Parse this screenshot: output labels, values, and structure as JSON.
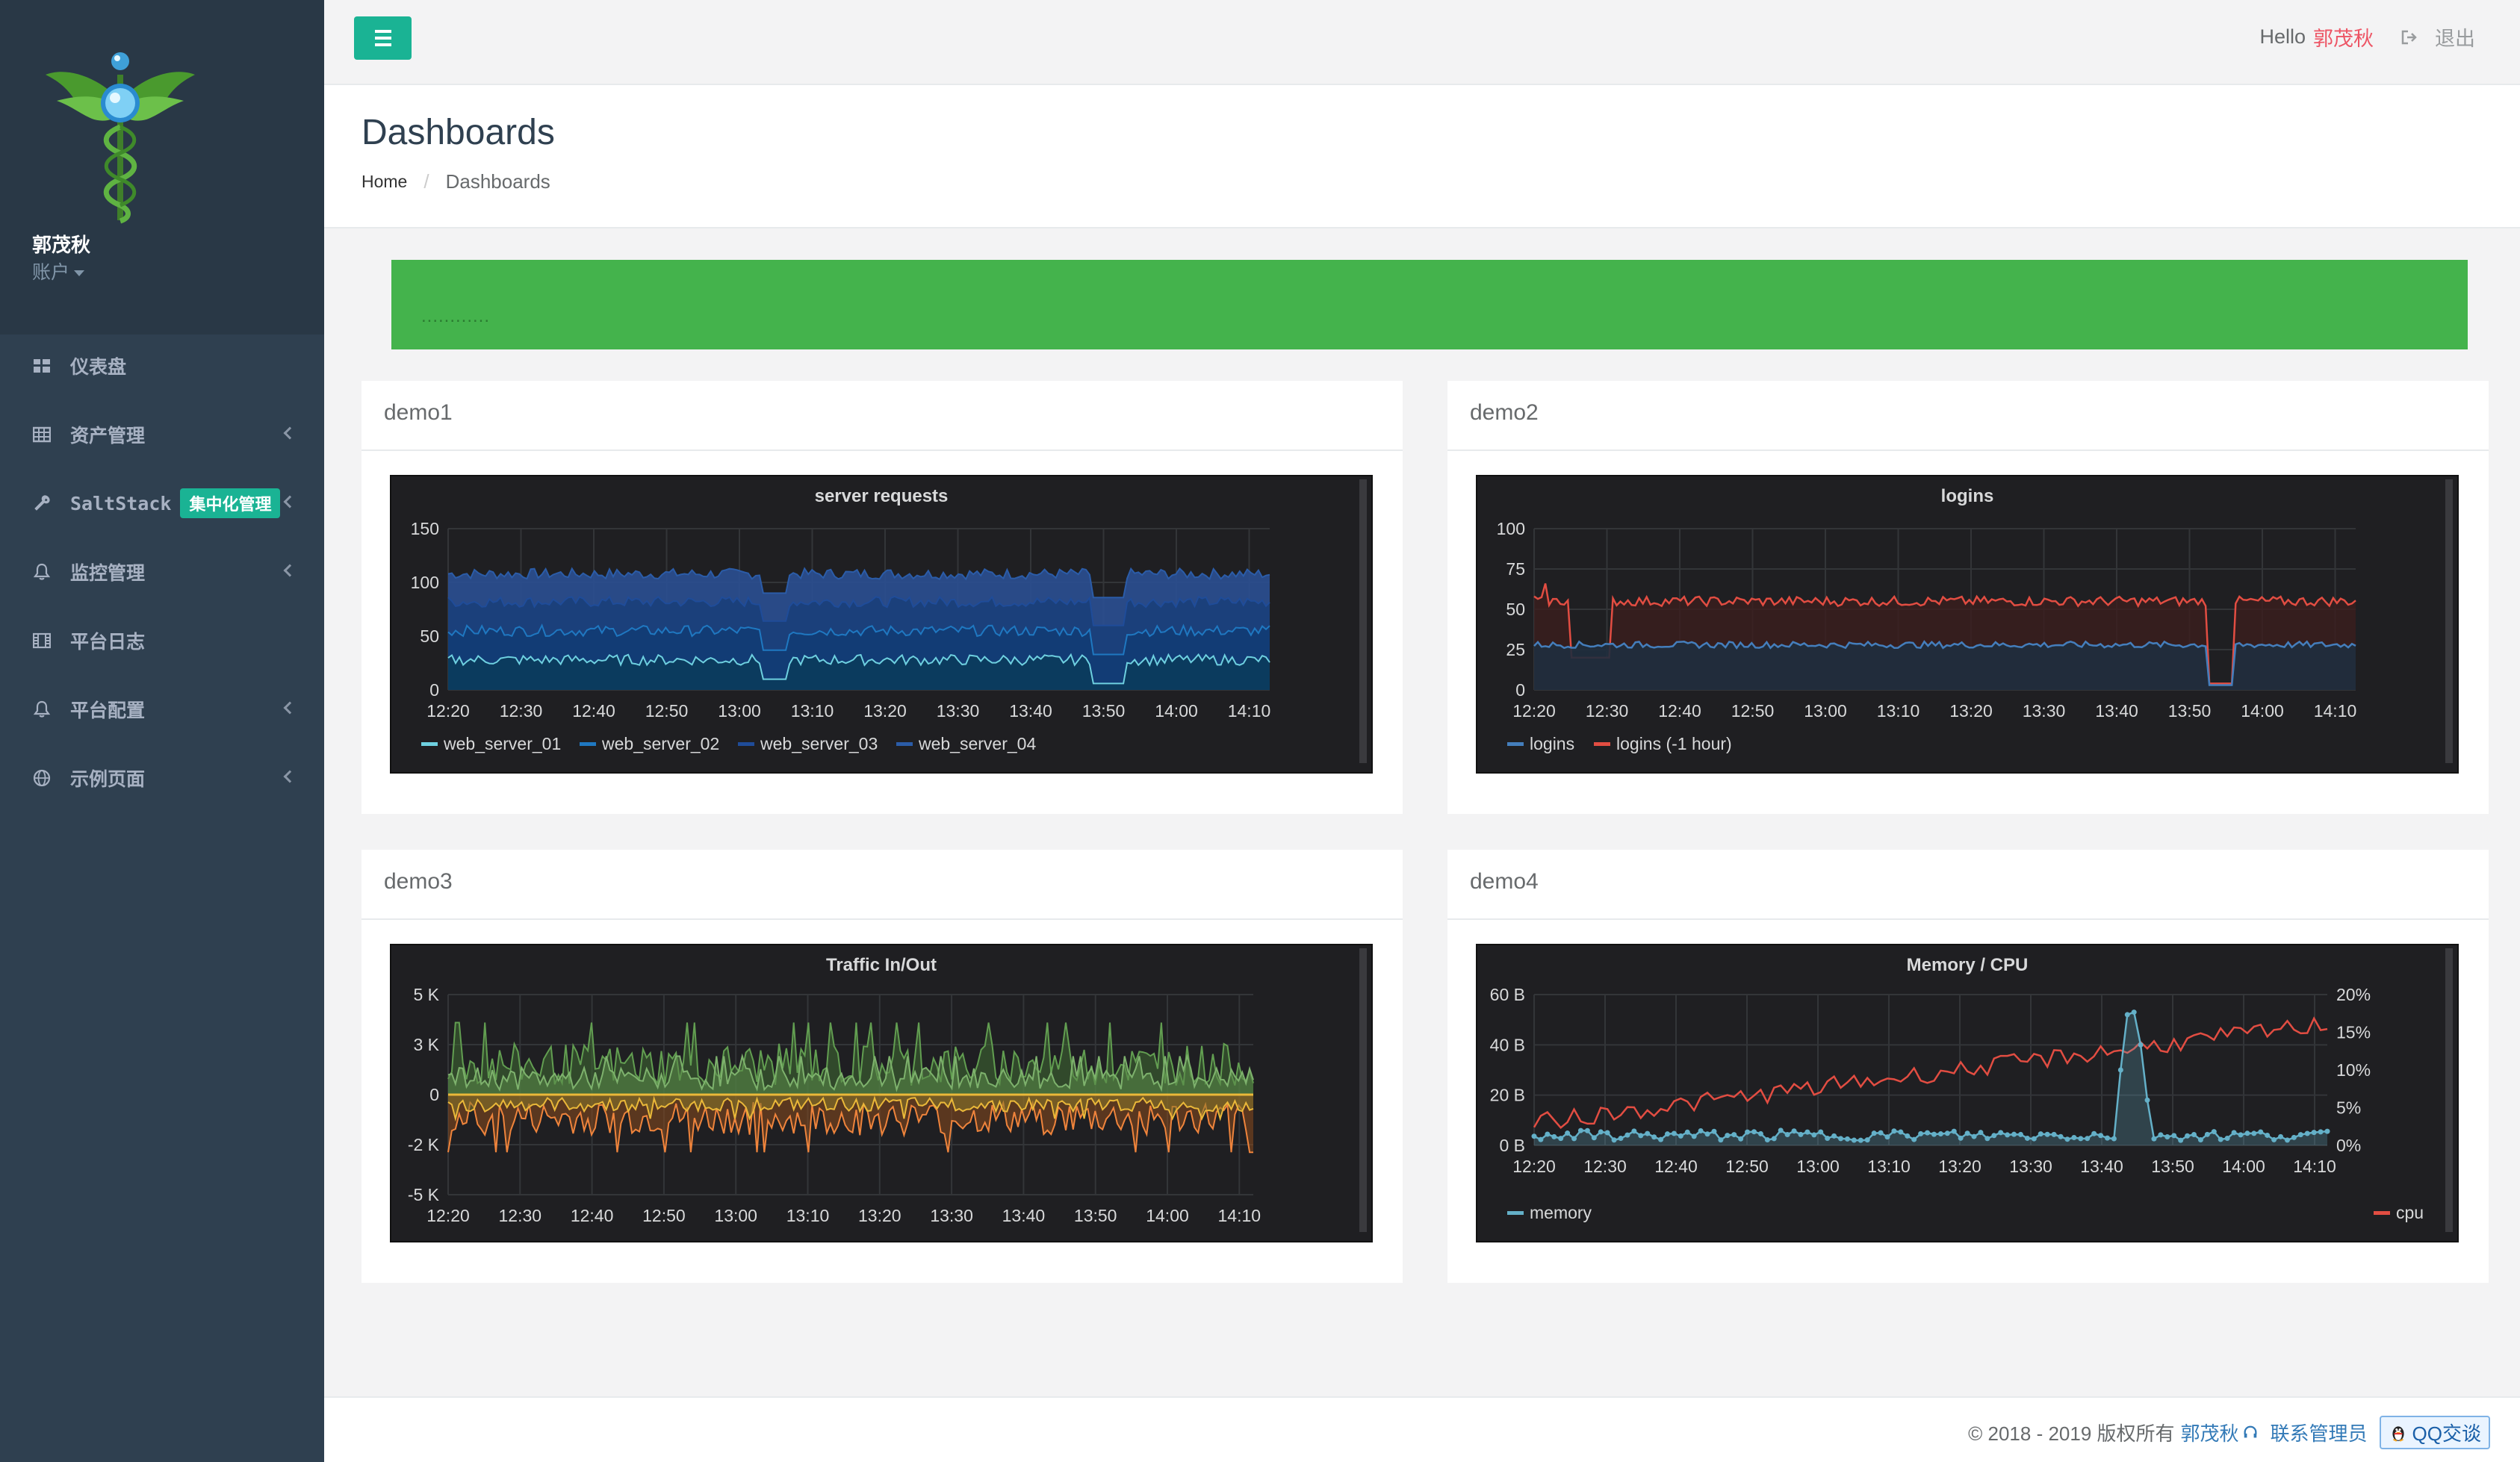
{
  "sidebar": {
    "user_name": "郭茂秋",
    "account_label": "账户",
    "items": [
      {
        "label": "仪表盘",
        "icon": "dashboard-icon"
      },
      {
        "label": "资产管理",
        "icon": "table-icon"
      },
      {
        "label": "SaltStack",
        "badge": "集中化管理",
        "icon": "wrench-icon"
      },
      {
        "label": "监控管理",
        "icon": "bell-icon"
      },
      {
        "label": "平台日志",
        "icon": "film-icon"
      },
      {
        "label": "平台配置",
        "icon": "bell-icon"
      },
      {
        "label": "示例页面",
        "icon": "globe-icon"
      }
    ]
  },
  "topbar": {
    "hello": "Hello",
    "user": "郭茂秋",
    "logout": "退出"
  },
  "header": {
    "title": "Dashboards",
    "breadcrumb_home": "Home",
    "breadcrumb_current": "Dashboards"
  },
  "alert": {
    "text": "............"
  },
  "panels": [
    {
      "title": "demo1"
    },
    {
      "title": "demo2"
    },
    {
      "title": "demo3"
    },
    {
      "title": "demo4"
    }
  ],
  "x_ticks": [
    "12:20",
    "12:30",
    "12:40",
    "12:50",
    "13:00",
    "13:10",
    "13:20",
    "13:30",
    "13:40",
    "13:50",
    "14:00",
    "14:10"
  ],
  "chart_data": [
    {
      "type": "area",
      "title": "server requests",
      "ylim": [
        0,
        150
      ],
      "y_ticks": [
        "150",
        "100",
        "50",
        "0"
      ],
      "series": [
        {
          "name": "web_server_01",
          "color": "#6ed0e0",
          "level": 28
        },
        {
          "name": "web_server_02",
          "color": "#1f78c1",
          "level": 55
        },
        {
          "name": "web_server_03",
          "color": "#1f4c99",
          "level": 82
        },
        {
          "name": "web_server_04",
          "color": "#2b5ca8",
          "level": 108
        }
      ]
    },
    {
      "type": "line",
      "title": "logins",
      "ylim": [
        0,
        100
      ],
      "y_ticks": [
        "100",
        "75",
        "50",
        "25",
        "0"
      ],
      "series": [
        {
          "name": "logins",
          "color": "#447ebc",
          "level": 28
        },
        {
          "name": "logins (-1 hour)",
          "color": "#e24d42",
          "level": 55
        }
      ]
    },
    {
      "type": "area",
      "title": "Traffic In/Out",
      "ylim": [
        -5,
        5
      ],
      "y_ticks": [
        "5 K",
        "3 K",
        "0",
        "-2 K",
        "-5 K"
      ],
      "series": [
        {
          "color": "#629e51",
          "level": 1.5
        },
        {
          "color": "#7eb26d",
          "level": 0.8
        },
        {
          "color": "#ef843c",
          "level": -1.2
        },
        {
          "color": "#eab839",
          "level": -0.5
        }
      ]
    },
    {
      "type": "line",
      "title": "Memory / CPU",
      "ylim": [
        0,
        60
      ],
      "y_ticks": [
        "60 B",
        "40 B",
        "20 B",
        "0 B"
      ],
      "y2_ticks": [
        "20%",
        "15%",
        "10%",
        "5%",
        "0%"
      ],
      "series": [
        {
          "name": "memory",
          "color": "#64b0c8"
        },
        {
          "name": "cpu",
          "color": "#e24d42"
        }
      ]
    }
  ],
  "footer": {
    "copyright": "© 2018 - 2019 版权所有",
    "author": "郭茂秋",
    "contact": "联系管理员",
    "qq": "QQ交谈"
  }
}
